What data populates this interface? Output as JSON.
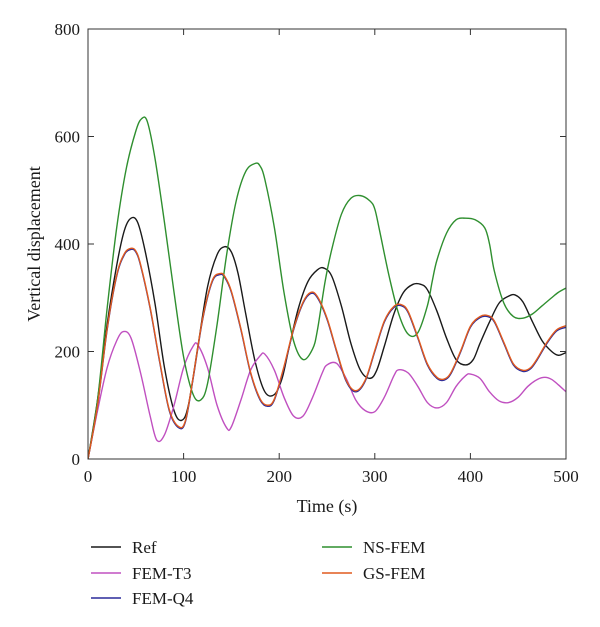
{
  "chart_data": {
    "type": "line",
    "xlabel": "Time (s)",
    "ylabel": "Vertical displacement",
    "xlim": [
      0,
      500
    ],
    "ylim": [
      0,
      800
    ],
    "xticks": [
      0,
      100,
      200,
      300,
      400,
      500
    ],
    "yticks": [
      0,
      200,
      400,
      600,
      800
    ],
    "grid": false,
    "legend_position": "bottom",
    "series": [
      {
        "name": "Ref",
        "color": "#1a1a1a",
        "x": [
          0,
          10,
          20,
          30,
          38,
          45,
          52,
          60,
          70,
          80,
          90,
          98,
          105,
          115,
          125,
          135,
          143,
          150,
          157,
          165,
          175,
          185,
          195,
          203,
          210,
          220,
          230,
          240,
          247,
          255,
          265,
          275,
          285,
          295,
          302,
          310,
          320,
          330,
          340,
          348,
          355,
          365,
          375,
          385,
          395,
          403,
          410,
          420,
          430,
          440,
          447,
          455,
          465,
          475,
          485,
          492,
          500
        ],
        "y": [
          0,
          110,
          250,
          360,
          425,
          448,
          440,
          385,
          290,
          170,
          90,
          72,
          100,
          210,
          320,
          380,
          395,
          385,
          345,
          270,
          180,
          125,
          120,
          150,
          205,
          280,
          330,
          352,
          355,
          340,
          285,
          215,
          165,
          150,
          165,
          210,
          270,
          310,
          325,
          325,
          315,
          275,
          225,
          185,
          175,
          185,
          215,
          255,
          290,
          303,
          305,
          292,
          255,
          220,
          200,
          193,
          198
        ]
      },
      {
        "name": "FEM-T3",
        "color": "#c050c0",
        "x": [
          0,
          10,
          20,
          30,
          37,
          45,
          55,
          65,
          72,
          80,
          90,
          100,
          110,
          115,
          125,
          135,
          145,
          150,
          160,
          170,
          180,
          185,
          195,
          205,
          215,
          225,
          235,
          245,
          250,
          260,
          270,
          280,
          290,
          300,
          310,
          320,
          325,
          335,
          345,
          355,
          365,
          375,
          385,
          395,
          400,
          410,
          420,
          430,
          440,
          450,
          460,
          470,
          478,
          485,
          492,
          500
        ],
        "y": [
          0,
          90,
          170,
          220,
          237,
          225,
          160,
          80,
          35,
          45,
          100,
          170,
          210,
          212,
          170,
          100,
          58,
          60,
          110,
          165,
          192,
          195,
          165,
          115,
          80,
          80,
          115,
          160,
          175,
          178,
          150,
          110,
          90,
          88,
          115,
          155,
          166,
          160,
          135,
          105,
          95,
          105,
          135,
          155,
          158,
          150,
          125,
          108,
          105,
          115,
          135,
          148,
          152,
          148,
          138,
          125
        ]
      },
      {
        "name": "FEM-Q4",
        "color": "#2a2a9a",
        "x": [
          0,
          10,
          20,
          30,
          38,
          45,
          50,
          55,
          65,
          75,
          85,
          95,
          102,
          110,
          120,
          130,
          138,
          143,
          150,
          160,
          170,
          180,
          188,
          195,
          205,
          215,
          225,
          233,
          240,
          250,
          260,
          270,
          280,
          290,
          300,
          310,
          320,
          328,
          335,
          345,
          355,
          365,
          373,
          380,
          390,
          400,
          410,
          418,
          425,
          435,
          445,
          455,
          463,
          470,
          480,
          490,
          500
        ],
        "y": [
          0,
          100,
          240,
          340,
          380,
          390,
          385,
          360,
          280,
          180,
          90,
          58,
          70,
          150,
          260,
          330,
          343,
          338,
          310,
          240,
          160,
          110,
          98,
          110,
          170,
          240,
          290,
          308,
          300,
          260,
          200,
          145,
          125,
          145,
          200,
          255,
          282,
          285,
          272,
          225,
          175,
          150,
          147,
          160,
          200,
          245,
          263,
          265,
          255,
          215,
          175,
          163,
          168,
          185,
          215,
          238,
          245
        ]
      },
      {
        "name": "NS-FEM",
        "color": "#2f8f2f",
        "x": [
          0,
          10,
          20,
          30,
          40,
          50,
          56,
          62,
          70,
          80,
          90,
          100,
          110,
          118,
          125,
          135,
          145,
          155,
          165,
          175,
          180,
          185,
          195,
          205,
          215,
          225,
          235,
          240,
          248,
          255,
          265,
          275,
          285,
          295,
          300,
          305,
          315,
          325,
          335,
          345,
          355,
          360,
          365,
          375,
          385,
          395,
          405,
          415,
          420,
          425,
          435,
          445,
          455,
          465,
          475,
          485,
          492,
          500
        ],
        "y": [
          0,
          110,
          280,
          430,
          540,
          610,
          633,
          628,
          560,
          440,
          310,
          190,
          120,
          110,
          140,
          250,
          380,
          480,
          535,
          550,
          545,
          520,
          430,
          310,
          220,
          185,
          205,
          240,
          330,
          390,
          455,
          485,
          490,
          480,
          465,
          425,
          340,
          270,
          232,
          235,
          285,
          330,
          370,
          420,
          445,
          448,
          445,
          430,
          400,
          350,
          290,
          265,
          262,
          270,
          285,
          300,
          310,
          318
        ]
      },
      {
        "name": "GS-FEM",
        "color": "#e05a1e",
        "x": [
          0,
          10,
          20,
          30,
          38,
          45,
          50,
          55,
          65,
          75,
          85,
          95,
          102,
          110,
          120,
          130,
          138,
          143,
          150,
          160,
          170,
          180,
          188,
          195,
          205,
          215,
          225,
          233,
          240,
          250,
          260,
          270,
          280,
          290,
          300,
          310,
          320,
          328,
          335,
          345,
          355,
          365,
          373,
          380,
          390,
          400,
          410,
          418,
          425,
          435,
          445,
          455,
          463,
          470,
          480,
          490,
          500
        ],
        "y": [
          0,
          100,
          242,
          342,
          382,
          392,
          387,
          362,
          282,
          182,
          92,
          60,
          72,
          152,
          262,
          332,
          345,
          340,
          312,
          242,
          162,
          112,
          100,
          112,
          172,
          242,
          292,
          310,
          302,
          262,
          202,
          147,
          127,
          147,
          202,
          257,
          284,
          287,
          274,
          227,
          177,
          152,
          149,
          162,
          202,
          247,
          265,
          267,
          257,
          217,
          177,
          165,
          170,
          187,
          217,
          240,
          248
        ]
      }
    ]
  }
}
